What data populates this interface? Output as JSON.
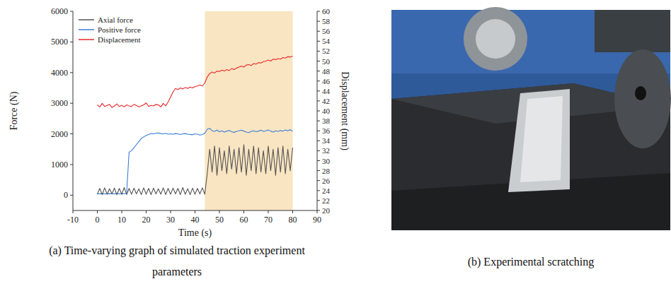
{
  "chart_data": {
    "type": "line",
    "caption": "(a) Time-varying graph of simulated traction experiment parameters",
    "x_label": "Time (s)",
    "y_label": "Force (N)",
    "y2_label": "Displacement (mm)",
    "x": [
      0,
      1,
      2,
      3,
      4,
      5,
      6,
      7,
      8,
      9,
      10,
      11,
      12,
      13,
      14,
      15,
      16,
      17,
      18,
      19,
      20,
      21,
      22,
      23,
      24,
      25,
      26,
      27,
      28,
      29,
      30,
      31,
      32,
      33,
      34,
      35,
      36,
      37,
      38,
      39,
      40,
      41,
      42,
      43,
      44,
      45,
      46,
      47,
      48,
      49,
      50,
      51,
      52,
      53,
      54,
      55,
      56,
      57,
      58,
      59,
      60,
      61,
      62,
      63,
      64,
      65,
      66,
      67,
      68,
      69,
      70,
      71,
      72,
      73,
      74,
      75,
      76,
      77,
      78,
      79,
      80
    ],
    "xlim": [
      -10,
      90
    ],
    "xticks": [
      -10,
      0,
      10,
      20,
      30,
      40,
      50,
      60,
      70,
      80,
      90
    ],
    "ylim": [
      -500,
      6000
    ],
    "yticks": [
      0,
      1000,
      2000,
      3000,
      4000,
      5000,
      6000
    ],
    "y2lim": [
      20,
      60
    ],
    "y2ticks": [
      20,
      22,
      24,
      26,
      28,
      30,
      32,
      34,
      36,
      38,
      40,
      42,
      44,
      46,
      48,
      50,
      52,
      54,
      56,
      58,
      60
    ],
    "highlight": {
      "x": [
        44,
        80
      ],
      "color": "#f9e5c2"
    },
    "grid": false,
    "legend": "upper left",
    "series": [
      {
        "name": "Axial force",
        "color": "#555555",
        "values": [
          30,
          220,
          20,
          240,
          30,
          210,
          40,
          230,
          20,
          220,
          30,
          250,
          20,
          220,
          30,
          230,
          40,
          210,
          20,
          240,
          30,
          220,
          20,
          230,
          40,
          210,
          30,
          240,
          20,
          220,
          30,
          230,
          40,
          220,
          20,
          250,
          30,
          210,
          20,
          230,
          30,
          220,
          40,
          240,
          30,
          700,
          1500,
          750,
          1600,
          650,
          1550,
          800,
          1450,
          700,
          1600,
          850,
          1500,
          700,
          1550,
          750,
          1650,
          650,
          1500,
          800,
          1600,
          700,
          1550,
          750,
          1450,
          700,
          1600,
          800,
          1500,
          650,
          1550,
          750,
          1600,
          700,
          1500,
          800,
          1550
        ]
      },
      {
        "name": "Positive force",
        "color": "#3b7dd8",
        "values": [
          40,
          45,
          50,
          40,
          45,
          50,
          40,
          45,
          50,
          40,
          45,
          50,
          60,
          1400,
          1450,
          1550,
          1650,
          1750,
          1850,
          1900,
          1950,
          1980,
          2010,
          2000,
          2020,
          2030,
          2010,
          2000,
          2020,
          1990,
          2000,
          1990,
          2010,
          2000,
          1980,
          2000,
          2010,
          1990,
          1980,
          1970,
          2000,
          1990,
          1960,
          1980,
          2020,
          2150,
          2180,
          2100,
          2080,
          2120,
          2070,
          2100,
          2060,
          2090,
          2110,
          2070,
          2050,
          2080,
          2100,
          2120,
          2090,
          2060,
          2040,
          2080,
          2100,
          2070,
          2090,
          2120,
          2080,
          2100,
          2130,
          2090,
          2060,
          2100,
          2080,
          2110,
          2090,
          2130,
          2100,
          2140,
          2080
        ]
      },
      {
        "name": "Displacement",
        "color": "#e8262a",
        "axis": "y2",
        "values": [
          41.2,
          40.8,
          41.5,
          40.9,
          41.1,
          41.3,
          40.7,
          41.0,
          41.4,
          40.9,
          41.1,
          40.8,
          41.2,
          41.0,
          40.9,
          41.3,
          41.1,
          40.8,
          41.0,
          41.2,
          41.6,
          40.9,
          41.1,
          41.0,
          41.3,
          41.2,
          40.8,
          41.5,
          41.0,
          41.8,
          42.8,
          43.8,
          44.5,
          44.3,
          44.6,
          44.4,
          44.7,
          44.5,
          44.8,
          44.6,
          44.9,
          45.0,
          45.2,
          45.0,
          45.6,
          46.8,
          47.5,
          47.8,
          47.6,
          48.0,
          47.9,
          48.2,
          48.0,
          48.3,
          48.1,
          48.5,
          48.3,
          48.6,
          48.8,
          49.0,
          48.8,
          49.2,
          49.3,
          49.1,
          49.5,
          49.4,
          49.7,
          49.6,
          49.9,
          50.0,
          50.2,
          50.0,
          50.4,
          50.3,
          50.5,
          50.4,
          50.7,
          50.6,
          50.9,
          50.8,
          51.0
        ]
      }
    ]
  },
  "photo": {
    "caption": "(b) Experimental scratching"
  }
}
